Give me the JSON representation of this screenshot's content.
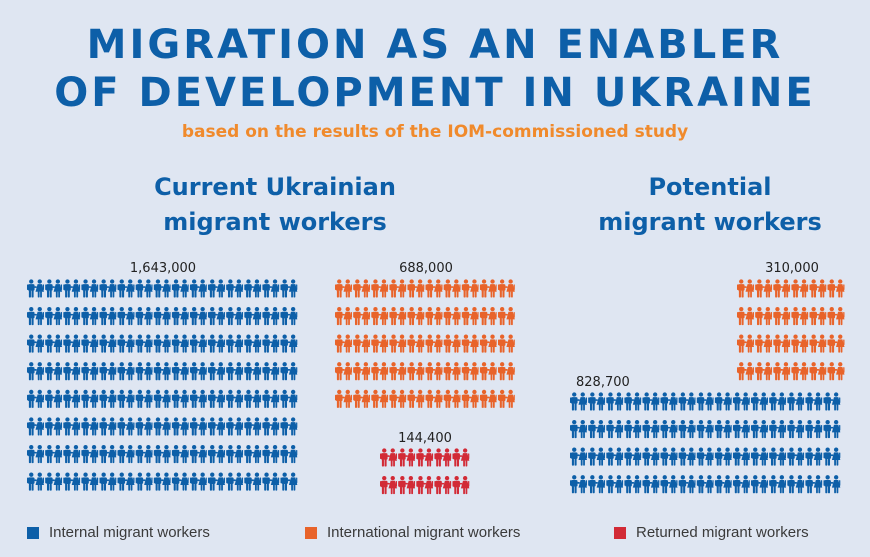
{
  "title_line1": "MIGRATION AS AN ENABLER",
  "title_line2": "OF DEVELOPMENT IN UKRAINE",
  "subtitle": "based on the results of the IOM-commissioned study",
  "section_current": "Current Ukrainian migrant workers",
  "section_current_l1": "Current Ukrainian",
  "section_current_l2": "migrant workers",
  "section_potential_l1": "Potential",
  "section_potential_l2": "migrant workers",
  "colors": {
    "internal": "#0d5fa8",
    "international": "#e8632a",
    "returned": "#d22a36",
    "title": "#0d5fa8",
    "subtitle": "#f08a2c"
  },
  "legend": [
    {
      "label": "Internal migrant workers",
      "color": "#0d5fa8"
    },
    {
      "label": "International migrant workers",
      "color": "#e8632a"
    },
    {
      "label": "Returned migrant workers",
      "color": "#d22a36"
    }
  ],
  "chart_data": {
    "type": "pictograph",
    "groups": [
      {
        "group": "Current Ukrainian migrant workers",
        "category": "Internal migrant workers",
        "value": 1643000,
        "label": "1,643,000"
      },
      {
        "group": "Current Ukrainian migrant workers",
        "category": "International migrant workers",
        "value": 688000,
        "label": "688,000"
      },
      {
        "group": "Current Ukrainian migrant workers",
        "category": "Returned migrant workers",
        "value": 144400,
        "label": "144,400"
      },
      {
        "group": "Potential migrant workers",
        "category": "Internal migrant workers",
        "value": 828700,
        "label": "828,700"
      },
      {
        "group": "Potential migrant workers",
        "category": "International migrant workers",
        "value": 310000,
        "label": "310,000"
      }
    ]
  }
}
